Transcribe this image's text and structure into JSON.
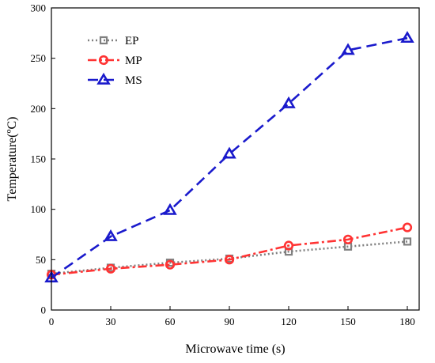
{
  "chart_data": {
    "type": "line",
    "xlabel": "Microwave time (s)",
    "ylabel": "Temperature(ºC)",
    "x": [
      0,
      30,
      60,
      90,
      120,
      150,
      180
    ],
    "xlim": [
      0,
      186
    ],
    "ylim": [
      0,
      300
    ],
    "xticks": [
      0,
      30,
      60,
      90,
      120,
      150,
      180
    ],
    "yticks": [
      0,
      50,
      100,
      150,
      200,
      250,
      300
    ],
    "grid": false,
    "legend_position": "top-left",
    "series": [
      {
        "name": "EP",
        "values": [
          36,
          42,
          47,
          51,
          58,
          63,
          68
        ],
        "color": "#808080",
        "marker": "square",
        "line_style": "dotted"
      },
      {
        "name": "MP",
        "values": [
          35,
          41,
          45,
          50,
          64,
          70,
          82
        ],
        "color": "#ff3333",
        "marker": "circle",
        "line_style": "dash-dot"
      },
      {
        "name": "MS",
        "values": [
          32,
          73,
          99,
          155,
          205,
          258,
          270
        ],
        "color": "#1a1acc",
        "marker": "triangle",
        "line_style": "dashed"
      }
    ]
  }
}
